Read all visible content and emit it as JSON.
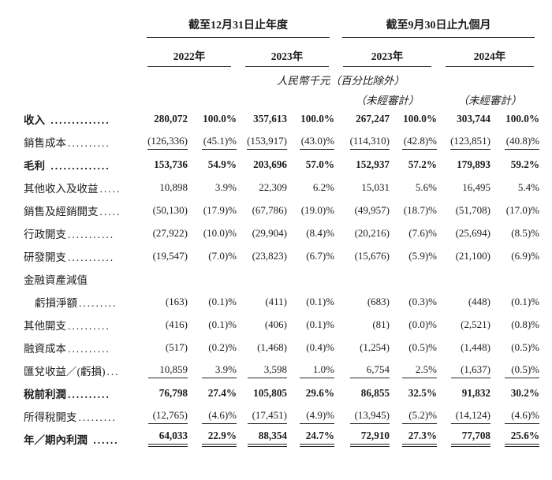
{
  "header": {
    "group1": "截至12月31日止年度",
    "group2": "截至9月30日止九個月",
    "years": [
      "2022年",
      "2023年",
      "2023年",
      "2024年"
    ],
    "unit_note": "人民幣千元（百分比除外）",
    "unaudited_notes": [
      "（未經審計）",
      "（未經審計）"
    ]
  },
  "rows": [
    {
      "label": "收入",
      "dots": " ..............",
      "bold": true,
      "values": [
        "280,072",
        "100.0%",
        "357,613",
        "100.0%",
        "267,247",
        "100.0%",
        "303,744",
        "100.0%"
      ]
    },
    {
      "label": "銷售成本",
      "dots": "..........",
      "rule": "single",
      "values": [
        "(126,336)",
        "(45.1)%",
        "(153,917)",
        "(43.0)%",
        "(114,310)",
        "(42.8)%",
        "(123,851)",
        "(40.8)%"
      ]
    },
    {
      "label": "毛利",
      "dots": " ..............",
      "bold": true,
      "values": [
        "153,736",
        "54.9%",
        "203,696",
        "57.0%",
        "152,937",
        "57.2%",
        "179,893",
        "59.2%"
      ]
    },
    {
      "label": "其他收入及收益",
      "dots": ".....",
      "values": [
        "10,898",
        "3.9%",
        "22,309",
        "6.2%",
        "15,031",
        "5.6%",
        "16,495",
        "5.4%"
      ]
    },
    {
      "label": "銷售及經銷開支",
      "dots": ".....",
      "values": [
        "(50,130)",
        "(17.9)%",
        "(67,786)",
        "(19.0)%",
        "(49,957)",
        "(18.7)%",
        "(51,708)",
        "(17.0)%"
      ]
    },
    {
      "label": "行政開支",
      "dots": "...........",
      "values": [
        "(27,922)",
        "(10.0)%",
        "(29,904)",
        "(8.4)%",
        "(20,216)",
        "(7.6)%",
        "(25,694)",
        "(8.5)%"
      ]
    },
    {
      "label": "研發開支",
      "dots": "...........",
      "values": [
        "(19,547)",
        "(7.0)%",
        "(23,823)",
        "(6.7)%",
        "(15,676)",
        "(5.9)%",
        "(21,100)",
        "(6.9)%"
      ]
    },
    {
      "label": "金融資產減值",
      "dots": "",
      "label_only": true,
      "values": []
    },
    {
      "label": "虧損淨額",
      "dots": ".........",
      "indent": true,
      "values": [
        "(163)",
        "(0.1)%",
        "(411)",
        "(0.1)%",
        "(683)",
        "(0.3)%",
        "(448)",
        "(0.1)%"
      ]
    },
    {
      "label": "其他開支",
      "dots": "..........",
      "values": [
        "(416)",
        "(0.1)%",
        "(406)",
        "(0.1)%",
        "(81)",
        "(0.0)%",
        "(2,521)",
        "(0.8)%"
      ]
    },
    {
      "label": "融資成本",
      "dots": "..........",
      "values": [
        "(517)",
        "(0.2)%",
        "(1,468)",
        "(0.4)%",
        "(1,254)",
        "(0.5)%",
        "(1,448)",
        "(0.5)%"
      ]
    },
    {
      "label": "匯兌收益／(虧損)",
      "dots": "...",
      "rule": "single",
      "values": [
        "10,859",
        "3.9%",
        "3,598",
        "1.0%",
        "6,754",
        "2.5%",
        "(1,637)",
        "(0.5)%"
      ]
    },
    {
      "label": "稅前利潤",
      "dots": "..........",
      "bold": true,
      "values": [
        "76,798",
        "27.4%",
        "105,805",
        "29.6%",
        "86,855",
        "32.5%",
        "91,832",
        "30.2%"
      ]
    },
    {
      "label": "所得稅開支",
      "dots": ".........",
      "rule": "single",
      "values": [
        "(12,765)",
        "(4.6)%",
        "(17,451)",
        "(4.9)%",
        "(13,945)",
        "(5.2)%",
        "(14,124)",
        "(4.6)%"
      ]
    },
    {
      "label": "年／期內利潤",
      "dots": " ......",
      "bold": true,
      "rule": "double",
      "values": [
        "64,033",
        "22.9%",
        "88,354",
        "24.7%",
        "72,910",
        "27.3%",
        "77,708",
        "25.6%"
      ]
    }
  ]
}
